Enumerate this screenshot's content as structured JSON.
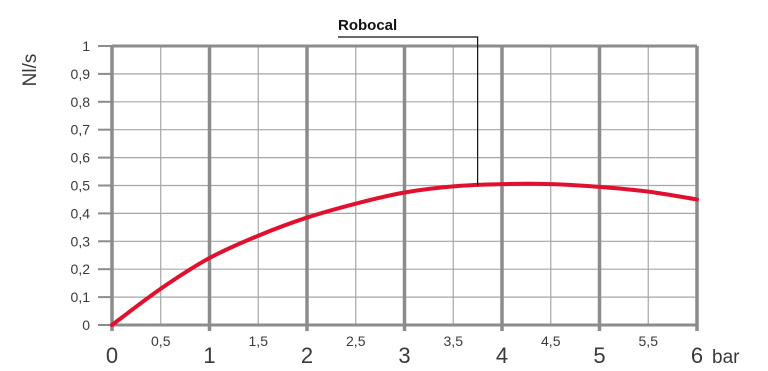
{
  "chart_data": {
    "type": "line",
    "ylabel": "Nl/s",
    "xunit": "bar",
    "xlim": [
      0,
      6
    ],
    "ylim": [
      0,
      1
    ],
    "x_major_ticks": [
      {
        "value": 0,
        "label": "0"
      },
      {
        "value": 1,
        "label": "1"
      },
      {
        "value": 2,
        "label": "2"
      },
      {
        "value": 3,
        "label": "3"
      },
      {
        "value": 4,
        "label": "4"
      },
      {
        "value": 5,
        "label": "5"
      },
      {
        "value": 6,
        "label": "6"
      }
    ],
    "x_minor_ticks": [
      {
        "value": 0.5,
        "label": "0,5"
      },
      {
        "value": 1.5,
        "label": "1,5"
      },
      {
        "value": 2.5,
        "label": "2,5"
      },
      {
        "value": 3.5,
        "label": "3,5"
      },
      {
        "value": 4.5,
        "label": "4,5"
      },
      {
        "value": 5.5,
        "label": "5,5"
      }
    ],
    "y_ticks": [
      {
        "value": 0,
        "label": "0"
      },
      {
        "value": 0.1,
        "label": "0,1"
      },
      {
        "value": 0.2,
        "label": "0,2"
      },
      {
        "value": 0.3,
        "label": "0,3"
      },
      {
        "value": 0.4,
        "label": "0,4"
      },
      {
        "value": 0.5,
        "label": "0,5"
      },
      {
        "value": 0.6,
        "label": "0,6"
      },
      {
        "value": 0.7,
        "label": "0,7"
      },
      {
        "value": 0.8,
        "label": "0,8"
      },
      {
        "value": 0.9,
        "label": "0,9"
      },
      {
        "value": 1,
        "label": "1"
      }
    ],
    "grid": true,
    "series": [
      {
        "name": "Robocal",
        "color": "#e0102e",
        "x": [
          0,
          0.5,
          1,
          1.5,
          2,
          2.5,
          3,
          3.5,
          4,
          4.5,
          5,
          5.5,
          6
        ],
        "y": [
          0,
          0.13,
          0.24,
          0.32,
          0.385,
          0.435,
          0.475,
          0.497,
          0.505,
          0.505,
          0.495,
          0.478,
          0.45
        ]
      }
    ],
    "annotation": {
      "text": "Robocal",
      "x": 3.75,
      "y": 0.5
    }
  }
}
